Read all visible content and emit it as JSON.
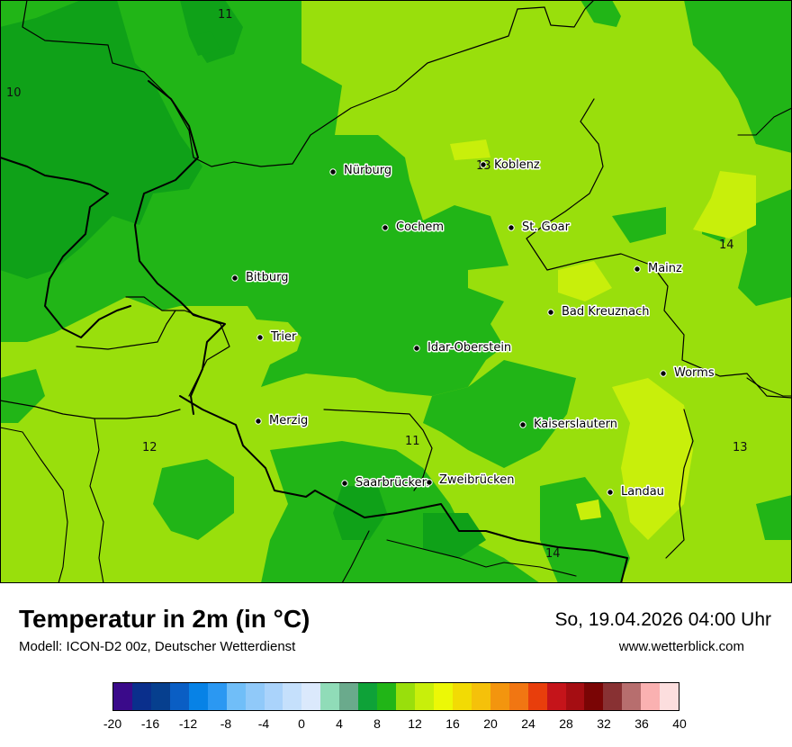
{
  "map": {
    "colors": {
      "t8": "#0fa118",
      "t10": "#21b517",
      "t12": "#99df0c",
      "t14": "#c8ef0b",
      "border": "#000000"
    },
    "cities": [
      {
        "name": "Nürburg"
      },
      {
        "name": "Koblenz"
      },
      {
        "name": "Cochem"
      },
      {
        "name": "St. Goar"
      },
      {
        "name": "Bitburg"
      },
      {
        "name": "Mainz"
      },
      {
        "name": "Bad Kreuznach"
      },
      {
        "name": "Trier"
      },
      {
        "name": "Idar-Oberstein"
      },
      {
        "name": "Worms"
      },
      {
        "name": "Merzig"
      },
      {
        "name": "Kaiserslautern"
      },
      {
        "name": "Saarbrücken"
      },
      {
        "name": "Zweibrücken"
      },
      {
        "name": "Landau"
      }
    ],
    "isotherm_labels": [
      "11",
      "10",
      "13",
      "14",
      "12",
      "11",
      "13",
      "14"
    ]
  },
  "header": {
    "title": "Temperatur in 2m (in °C)",
    "subtitle": "Modell: ICON-D2 00z, Deutscher Wetterdienst",
    "datetime": "So, 19.04.2026 04:00 Uhr",
    "website": "www.wetterblick.com"
  },
  "legend": {
    "colors": [
      "#3a0a8a",
      "#0a2f8c",
      "#063f8e",
      "#0a5ec4",
      "#0782e6",
      "#2b98f2",
      "#70bef8",
      "#90c9f9",
      "#aad3fb",
      "#c5e0fc",
      "#dbe9fc",
      "#90dcb8",
      "#6aaa8c",
      "#0ea238",
      "#21b517",
      "#99df0c",
      "#c8ef0b",
      "#ecf806",
      "#f2db04",
      "#f5c10a",
      "#f3950e",
      "#f17612",
      "#e83e0c",
      "#c5141a",
      "#a50d12",
      "#7a0505",
      "#883133",
      "#b76e6e",
      "#fab1b1",
      "#fcdede"
    ],
    "ticks": [
      "-20",
      "-16",
      "-12",
      "-8",
      "-4",
      "0",
      "4",
      "8",
      "12",
      "16",
      "20",
      "24",
      "28",
      "32",
      "36",
      "40"
    ]
  }
}
